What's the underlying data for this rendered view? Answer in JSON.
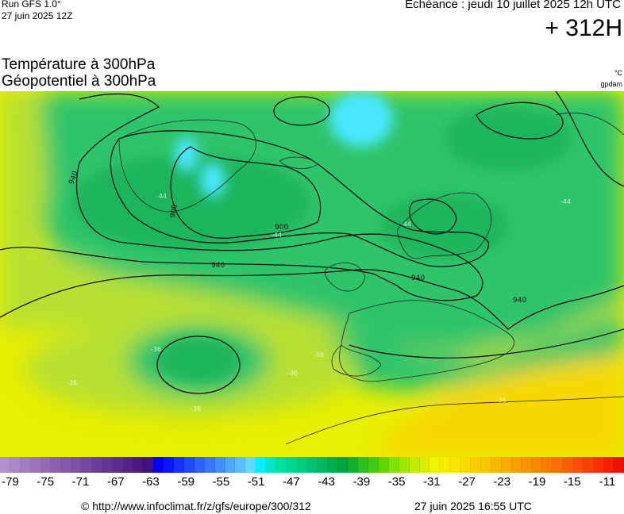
{
  "header": {
    "run_label": "Run GFS 1.0°",
    "run_date": "27 juin 2025 12Z",
    "valid_label": "Echéance : jeudi 10 juillet 2025 12h UTC",
    "lead_time": "+ 312H"
  },
  "titles": {
    "line1": "Température à 300hPa",
    "line2": "Géopotentiel à 300hPa",
    "unit_temperature": "°C",
    "unit_geopotential": "gpdam"
  },
  "map": {
    "region": "Europe / North Atlantic",
    "field": "temperature_300hPa",
    "contour_field": "geopotential_300hPa",
    "contour_labels": [
      "900",
      "900",
      "940",
      "940",
      "940",
      "940"
    ],
    "temp_labels": [
      "-44",
      "-44",
      "-44",
      "-44",
      "-36",
      "-36",
      "-36",
      "-36",
      "-36",
      "-36"
    ],
    "colors": {
      "cold_core": "#48e8ff",
      "cold_green": "#1fb55c",
      "mid_green": "#2fc46a",
      "yellow_green": "#b8e030",
      "yellow": "#e8ef00",
      "warm_yellow": "#f6d800",
      "contour": "#111111",
      "coast": "#222222"
    }
  },
  "colorbar": {
    "colors": [
      "#b38fcf",
      "#ab86c9",
      "#a37dc2",
      "#9b74bc",
      "#936bb6",
      "#8b62b0",
      "#8459aa",
      "#7c50a4",
      "#74479e",
      "#6c3e98",
      "#643592",
      "#5c2c8c",
      "#542386",
      "#4c1a80",
      "#44117a",
      "#0000ff",
      "#0b18ff",
      "#1630ff",
      "#2148ff",
      "#2c60ff",
      "#3778ff",
      "#4290ff",
      "#4da8ff",
      "#58c0ff",
      "#63d8ff",
      "#00f0ff",
      "#00e8c8",
      "#00e0a0",
      "#00d890",
      "#00cd80",
      "#00c270",
      "#00b860",
      "#00ae50",
      "#00a440",
      "#12b030",
      "#2ac020",
      "#40cc10",
      "#60d800",
      "#80e000",
      "#a0e600",
      "#c0ec00",
      "#d8f000",
      "#f0f400",
      "#f6ee00",
      "#f8e400",
      "#f8da00",
      "#f8cf00",
      "#f8c400",
      "#f8b800",
      "#f8ac00",
      "#f8a000",
      "#f89400",
      "#f88800",
      "#f87c00",
      "#f87000",
      "#f86000",
      "#f85000",
      "#f84000",
      "#f83000",
      "#f82000",
      "#ee1000"
    ],
    "tick_labels": [
      "-79",
      "-75",
      "-71",
      "-67",
      "-63",
      "-59",
      "-55",
      "-51",
      "-47",
      "-43",
      "-39",
      "-35",
      "-31",
      "-27",
      "-23",
      "-19",
      "-15",
      "-11"
    ]
  },
  "footer": {
    "url": "© http://www.infoclimat.fr/z/gfs/europe/300/312",
    "generated": "27 juin 2025 16:55 UTC"
  }
}
